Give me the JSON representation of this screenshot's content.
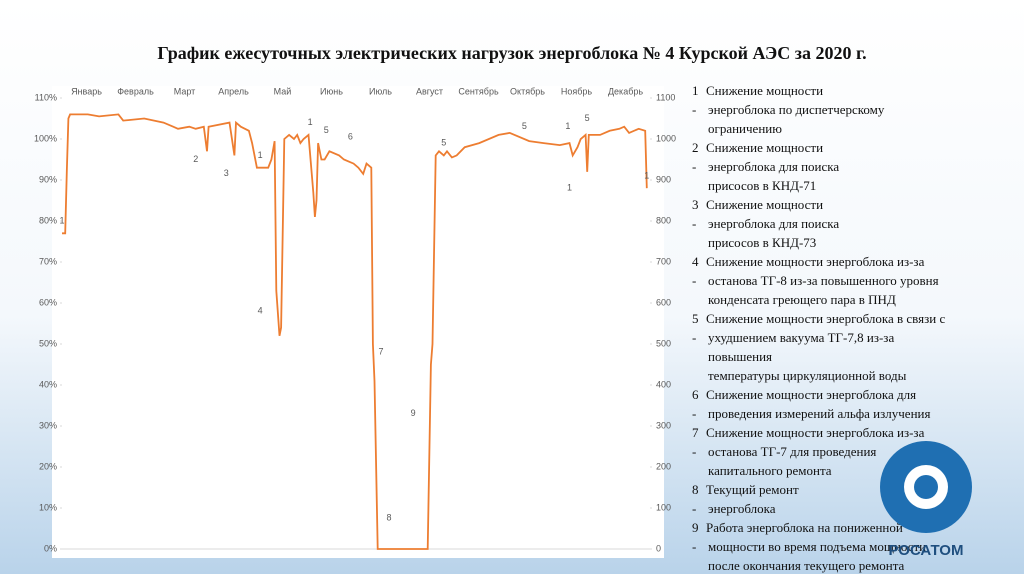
{
  "chart_data": {
    "type": "line",
    "title": "График ежесуточных электрических нагрузок энергоблока № 4 Курской АЭС за 2020 г.",
    "categories": [
      "Январь",
      "Февраль",
      "Март",
      "Апрель",
      "Май",
      "Июнь",
      "Июль",
      "Август",
      "Сентябрь",
      "Октябрь",
      "Ноябрь",
      "Декабрь"
    ],
    "x": [
      1,
      3,
      4,
      5,
      6,
      17,
      24,
      36,
      39,
      52,
      64,
      70,
      73,
      80,
      84,
      89,
      91,
      92,
      105,
      108,
      109,
      112,
      117,
      119,
      122,
      124,
      129,
      131,
      133,
      134,
      136,
      137,
      139,
      142,
      145,
      147,
      149,
      151,
      154,
      157,
      158,
      159,
      160,
      162,
      164,
      167,
      173,
      176,
      179,
      182,
      185,
      188,
      190,
      193,
      194,
      195,
      197,
      228,
      230,
      231,
      233,
      235,
      238,
      240,
      243,
      246,
      251,
      260,
      272,
      279,
      291,
      300,
      310,
      316,
      318,
      321,
      323,
      326,
      327,
      328,
      335,
      341,
      347,
      350,
      353,
      359,
      363,
      364
    ],
    "values": [
      77,
      77,
      92,
      105,
      106,
      106,
      105.5,
      106,
      104.5,
      105,
      104,
      103,
      102.5,
      103,
      102.5,
      103,
      97,
      103,
      104,
      96,
      104,
      103,
      102,
      99,
      93,
      93,
      93,
      95,
      99.5,
      63,
      52,
      54,
      100,
      101,
      100,
      101,
      99,
      100,
      101,
      87,
      81,
      85,
      99,
      95,
      95,
      97,
      96,
      95,
      94.5,
      94,
      93,
      91.5,
      94,
      93,
      50,
      41,
      0,
      0,
      45,
      50,
      96,
      97,
      96,
      97,
      95.5,
      96,
      98,
      99,
      101,
      101.5,
      99.5,
      99,
      98.5,
      99,
      96,
      98,
      100,
      101,
      92,
      101,
      101,
      102,
      102.5,
      103,
      101.5,
      102.5,
      102,
      88
    ],
    "color": "#ed7d31",
    "xlim": [
      1,
      366
    ],
    "ylim": [
      0,
      110
    ],
    "yticks": [
      {
        "value": 0,
        "label": "0%"
      },
      {
        "value": 10,
        "label": "10%"
      },
      {
        "value": 20,
        "label": "20%"
      },
      {
        "value": 30,
        "label": "30%"
      },
      {
        "value": 40,
        "label": "40%"
      },
      {
        "value": 50,
        "label": "50%"
      },
      {
        "value": 60,
        "label": "60%"
      },
      {
        "value": 70,
        "label": "70%"
      },
      {
        "value": 80,
        "label": "80%"
      },
      {
        "value": 90,
        "label": "90%"
      },
      {
        "value": 100,
        "label": "100%"
      },
      {
        "value": 110,
        "label": "110%"
      }
    ],
    "y2lim": [
      0,
      1100
    ],
    "y2ticks": [
      0,
      100,
      200,
      300,
      400,
      500,
      600,
      700,
      800,
      900,
      1000,
      1100
    ],
    "annotations": [
      {
        "text": "1",
        "x": 1,
        "y": 80
      },
      {
        "text": "2",
        "x": 84,
        "y": 95
      },
      {
        "text": "3",
        "x": 103,
        "y": 91.5
      },
      {
        "text": "1",
        "x": 124,
        "y": 96
      },
      {
        "text": "4",
        "x": 124,
        "y": 58
      },
      {
        "text": "1",
        "x": 155,
        "y": 104
      },
      {
        "text": "5",
        "x": 165,
        "y": 102
      },
      {
        "text": "6",
        "x": 180,
        "y": 100.5
      },
      {
        "text": "7",
        "x": 199,
        "y": 48
      },
      {
        "text": "9",
        "x": 219,
        "y": 33
      },
      {
        "text": "8",
        "x": 204,
        "y": 7.5
      },
      {
        "text": "5",
        "x": 238,
        "y": 99
      },
      {
        "text": "5",
        "x": 288,
        "y": 103
      },
      {
        "text": "1",
        "x": 315,
        "y": 103
      },
      {
        "text": "5",
        "x": 327,
        "y": 105
      },
      {
        "text": "1",
        "x": 316,
        "y": 88
      },
      {
        "text": "1",
        "x": 364,
        "y": 91
      }
    ]
  },
  "legend_list": [
    {
      "num": "1",
      "lines": [
        "Снижение мощности",
        "энергоблока по диспетчерскому",
        "ограничению"
      ]
    },
    {
      "num": "2",
      "lines": [
        "Снижение мощности",
        "энергоблока для поиска",
        "присосов в КНД-71"
      ]
    },
    {
      "num": "3",
      "lines": [
        "Снижение мощности",
        "энергоблока для поиска",
        "присосов в КНД-73"
      ]
    },
    {
      "num": "4",
      "lines": [
        "Снижение мощности энергоблока из-за",
        "останова ТГ-8 из-за повышенного уровня",
        "конденсата греющего пара в ПНД"
      ]
    },
    {
      "num": "5",
      "lines": [
        "Снижение мощности энергоблока в связи с",
        "ухудшением вакуума ТГ-7,8 из-за",
        "повышения",
        "температуры циркуляционной воды"
      ]
    },
    {
      "num": "6",
      "lines": [
        "Снижение мощности энергоблока для",
        "проведения измерений альфа излучения"
      ]
    },
    {
      "num": "7",
      "lines": [
        "Снижение мощности энергоблока из-за",
        "останова ТГ-7 для проведения",
        "капитального ремонта"
      ]
    },
    {
      "num": "8",
      "lines": [
        "Текущий ремонт",
        "энергоблока"
      ]
    },
    {
      "num": "9",
      "lines": [
        "Работа энергоблока на пониженной",
        "мощности во время подъема мощности",
        "после окончания текущего ремонта"
      ]
    }
  ],
  "logo": "РОСАТОМ"
}
